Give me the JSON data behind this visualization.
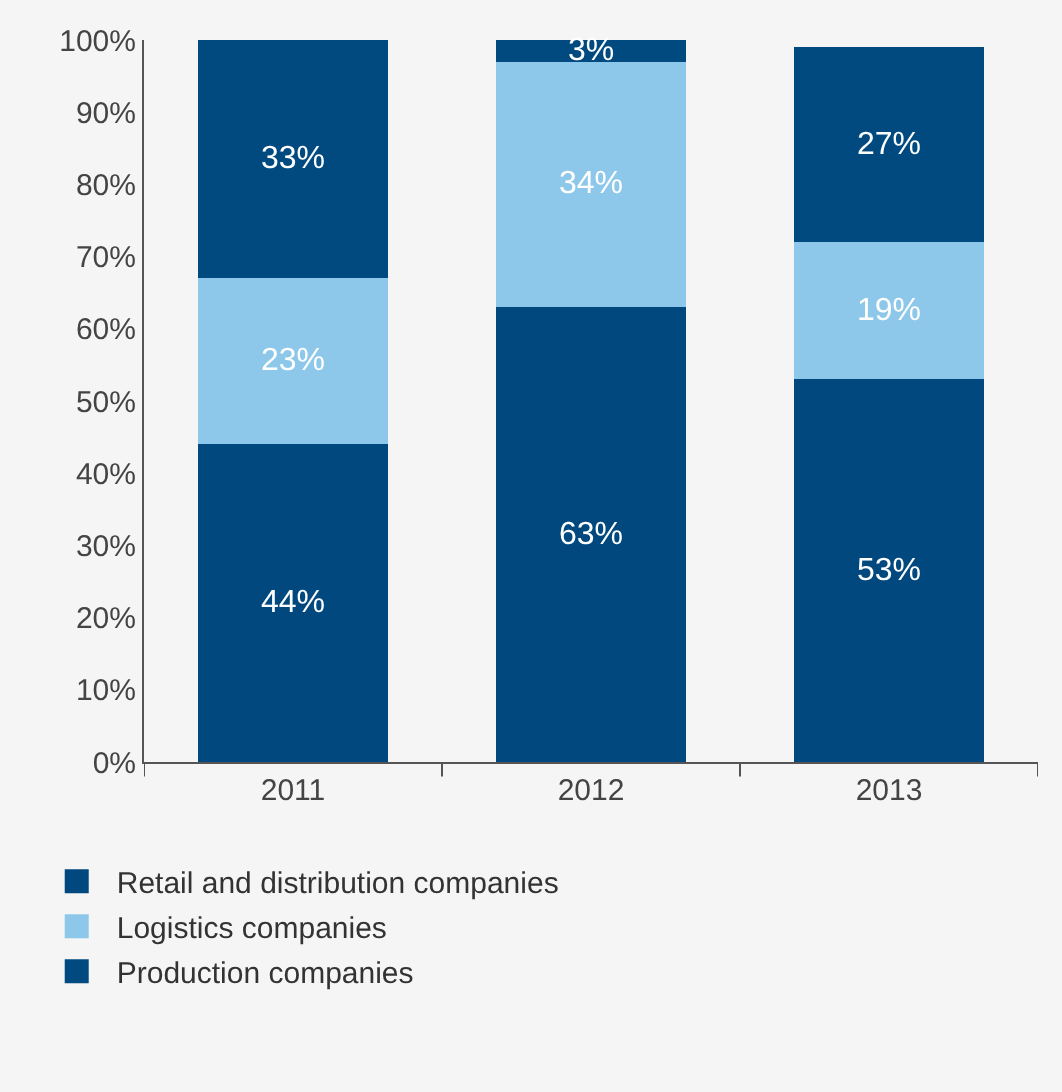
{
  "chart_data": {
    "type": "bar",
    "stacked": true,
    "categories": [
      "2011",
      "2012",
      "2013"
    ],
    "series": [
      {
        "name": "Retail and distribution companies",
        "color": "#00487e",
        "values": [
          44,
          63,
          53
        ],
        "value_labels": [
          "44%",
          "63%",
          "53%"
        ]
      },
      {
        "name": "Logistics companies",
        "color": "#8dc8ea",
        "values": [
          23,
          34,
          19
        ],
        "value_labels": [
          "23%",
          "34%",
          "19%"
        ]
      },
      {
        "name": "Production companies",
        "color": "#004a80",
        "values": [
          33,
          3,
          27
        ],
        "value_labels": [
          "33%",
          "3%",
          "27%"
        ]
      }
    ],
    "ylim": [
      0,
      100
    ],
    "yticks": [
      {
        "value": 0,
        "label": "0%"
      },
      {
        "value": 10,
        "label": "10%"
      },
      {
        "value": 20,
        "label": "20%"
      },
      {
        "value": 30,
        "label": "30%"
      },
      {
        "value": 40,
        "label": "40%"
      },
      {
        "value": 50,
        "label": "50%"
      },
      {
        "value": 60,
        "label": "60%"
      },
      {
        "value": 70,
        "label": "70%"
      },
      {
        "value": 80,
        "label": "80%"
      },
      {
        "value": 90,
        "label": "90%"
      },
      {
        "value": 100,
        "label": "100%"
      }
    ],
    "grid": false,
    "legend": "bottom"
  }
}
